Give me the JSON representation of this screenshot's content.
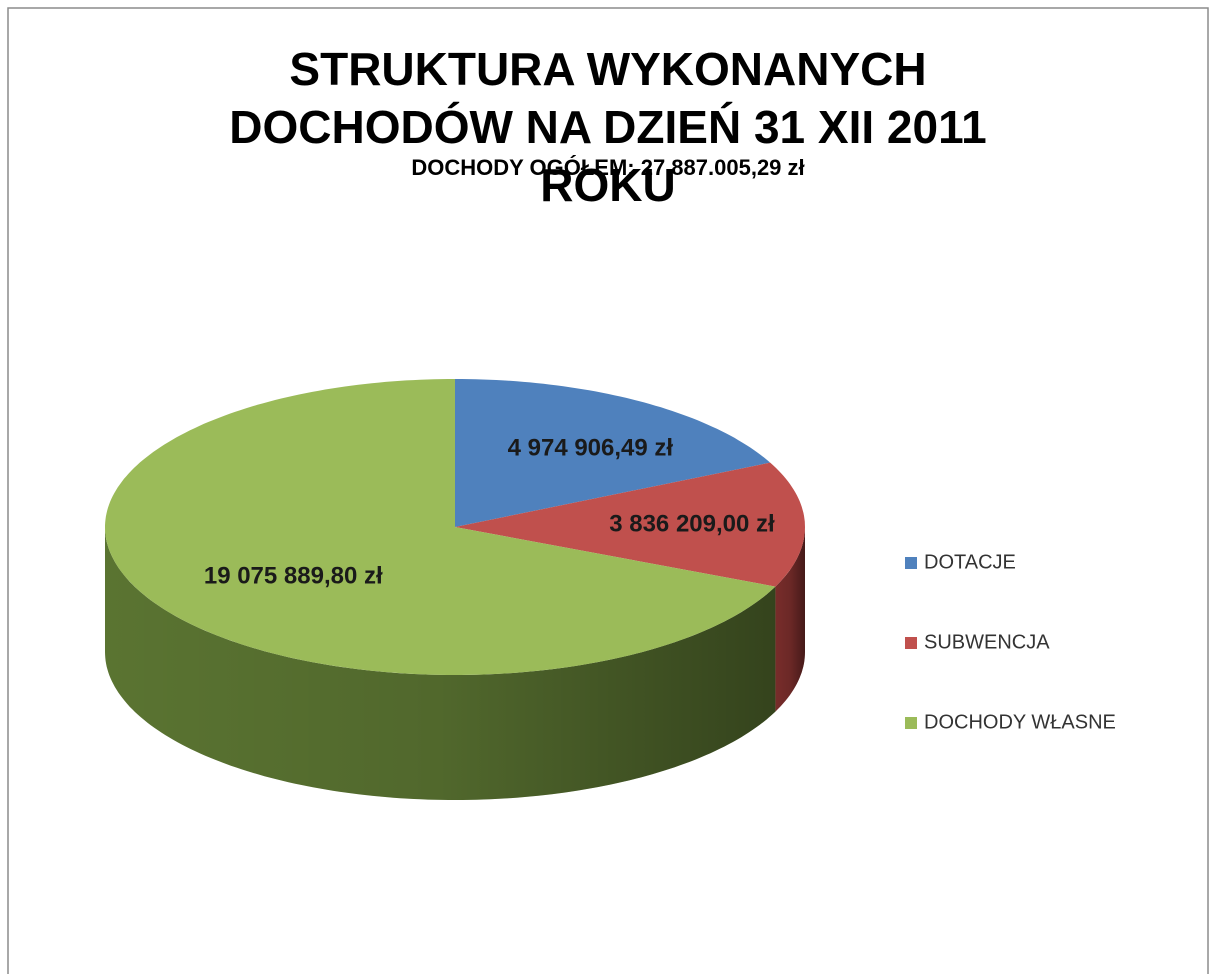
{
  "chart_data": {
    "type": "pie",
    "title": "STRUKTURA WYKONANYCH DOCHODÓW NA DZIEŃ 31 XII 2011 ROKU",
    "subtitle": "DOCHODY OGÓŁEM: 27.887.005,29 zł",
    "categories": [
      "DOTACJE",
      "SUBWENCJA",
      "DOCHODY WŁASNE"
    ],
    "values": [
      4974906.49,
      3836209.0,
      19075889.8
    ],
    "value_labels": [
      "4 974 906,49 zł",
      "3 836 209,00 zł",
      "19 075 889,80 zł"
    ],
    "colors": [
      "#4f81bd",
      "#c0504d",
      "#9bbb59"
    ],
    "side_colors": [
      "#3a5f8c",
      "#7e2f2d",
      "#5f7a34"
    ],
    "legend": "right"
  }
}
